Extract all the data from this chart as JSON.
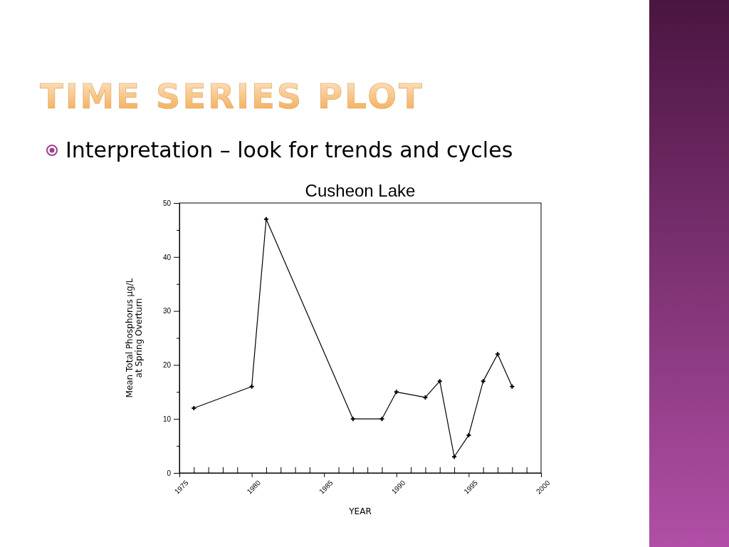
{
  "chart_data": {
    "type": "line",
    "title": "Cusheon Lake",
    "xlabel": "YEAR",
    "ylabel": "Mean Total Phosphorus µg/L\nat Spring Overturn",
    "annotations": [
      "TIME SERIES PLOT",
      "Interpretation – look for trends and cycles"
    ],
    "x": [
      1976,
      1980,
      1981,
      1987,
      1989,
      1990,
      1992,
      1993,
      1994,
      1995,
      1996,
      1997,
      1998
    ],
    "series": [
      {
        "color": "#000000",
        "values": [
          12,
          16,
          47,
          10,
          10,
          15,
          14,
          17,
          3,
          7,
          17,
          22,
          16
        ]
      }
    ],
    "xlim": [
      1975,
      2000
    ],
    "xticks": [
      1975,
      {
        "value": 1976,
        "label": null
      },
      {
        "value": 1977,
        "label": null
      },
      {
        "value": 1978,
        "label": null
      },
      {
        "value": 1979,
        "label": null
      },
      1980,
      {
        "value": 1981,
        "label": null
      },
      {
        "value": 1982,
        "label": null
      },
      {
        "value": 1983,
        "label": null
      },
      {
        "value": 1984,
        "label": null
      },
      1985,
      {
        "value": 1986,
        "label": null
      },
      {
        "value": 1987,
        "label": null
      },
      {
        "value": 1988,
        "label": null
      },
      {
        "value": 1989,
        "label": null
      },
      1990,
      {
        "value": 1991,
        "label": null
      },
      {
        "value": 1992,
        "label": null
      },
      {
        "value": 1993,
        "label": null
      },
      {
        "value": 1994,
        "label": null
      },
      1995,
      {
        "value": 1996,
        "label": null
      },
      {
        "value": 1997,
        "label": null
      },
      {
        "value": 1998,
        "label": null
      },
      {
        "value": 1999,
        "label": null
      },
      2000
    ],
    "ylim": [
      0,
      50
    ],
    "yticks": [
      0,
      {
        "value": 5,
        "label": null
      },
      10,
      {
        "value": 15,
        "label": null
      },
      20,
      {
        "value": 25,
        "label": null
      },
      30,
      {
        "value": 35,
        "label": null
      },
      40,
      {
        "value": 45,
        "label": null
      },
      50
    ],
    "marker": "cross",
    "line_style": "solid"
  }
}
